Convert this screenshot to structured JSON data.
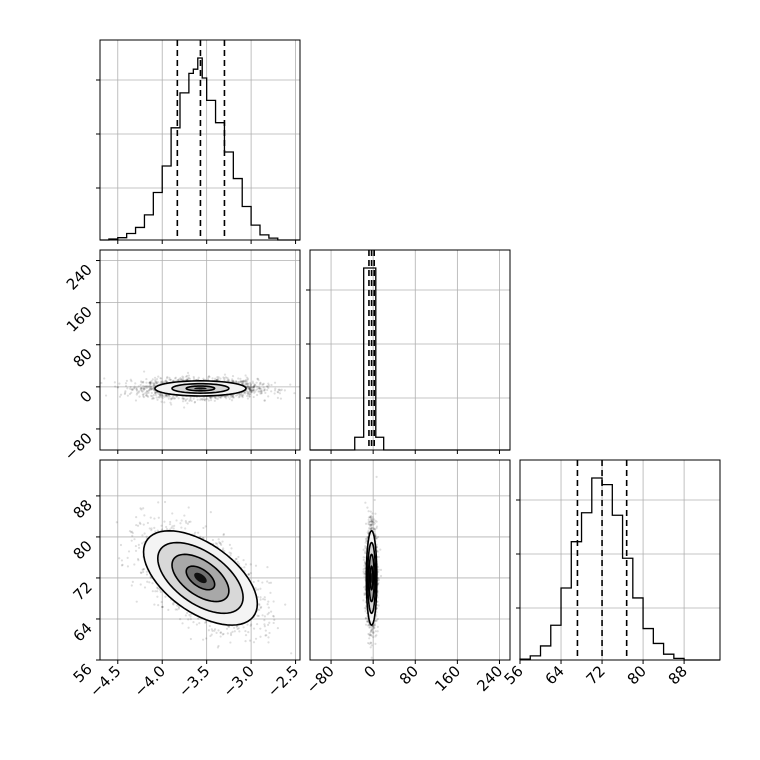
{
  "chart_data": {
    "type": "corner",
    "title": "",
    "grid": true,
    "n_params": 3,
    "params": [
      {
        "label": "",
        "range": [
          -4.7,
          -2.45
        ],
        "ticks": [
          -4.5,
          -4.0,
          -3.5,
          -3.0,
          -2.5
        ],
        "tick_labels": [
          "−4.5",
          "−4.0",
          "−3.5",
          "−3.0",
          "−2.5"
        ],
        "quantiles": [
          -3.83,
          -3.57,
          -3.3
        ],
        "hist_edges": [
          -4.7,
          -4.6,
          -4.5,
          -4.4,
          -4.3,
          -4.2,
          -4.1,
          -4.0,
          -3.9,
          -3.8,
          -3.7,
          -3.65,
          -3.6,
          -3.55,
          -3.5,
          -3.4,
          -3.3,
          -3.2,
          -3.1,
          -3.0,
          -2.9,
          -2.8,
          -2.7,
          -2.6,
          -2.45
        ],
        "hist_counts": [
          0,
          2,
          5,
          14,
          27,
          54,
          102,
          159,
          241,
          316,
          358,
          367,
          391,
          348,
          300,
          252,
          189,
          132,
          72,
          32,
          11,
          4,
          0,
          0
        ]
      },
      {
        "label": "",
        "range": [
          -120,
          260
        ],
        "ticks": [
          -80,
          0,
          80,
          160,
          240
        ],
        "tick_labels": [
          "−80",
          "0",
          "80",
          "160",
          "240"
        ],
        "quantiles": [
          -8,
          -3,
          2
        ],
        "hist_edges": [
          -120,
          -35,
          -18,
          -5,
          5,
          20,
          260
        ],
        "hist_counts": [
          0,
          7,
          100,
          100,
          7,
          0
        ]
      },
      {
        "label": "",
        "range": [
          56,
          95
        ],
        "ticks": [
          56,
          64,
          72,
          80,
          88
        ],
        "tick_labels": [
          "56",
          "64",
          "72",
          "80",
          "88"
        ],
        "quantiles": [
          67.2,
          72.0,
          76.8
        ],
        "hist_edges": [
          56,
          58,
          60,
          62,
          64,
          66,
          68,
          70,
          72,
          74,
          76,
          78,
          80,
          82,
          84,
          86,
          88,
          90,
          95
        ],
        "hist_counts": [
          1,
          5,
          17,
          42,
          87,
          143,
          178,
          220,
          212,
          175,
          123,
          75,
          38,
          20,
          7,
          2,
          0,
          0
        ]
      }
    ],
    "pairs": [
      {
        "x_param": 0,
        "y_param": 1,
        "center": [
          -3.57,
          -3
        ],
        "sigma": [
          0.32,
          9
        ],
        "rho": 0,
        "contour_levels": [
          0.5,
          1.0,
          1.6
        ]
      },
      {
        "x_param": 0,
        "y_param": 2,
        "center": [
          -3.57,
          72
        ],
        "sigma": [
          0.32,
          4.6
        ],
        "rho": -0.55,
        "contour_levels": [
          0.5,
          1.0,
          1.5,
          2.0
        ]
      },
      {
        "x_param": 1,
        "y_param": 2,
        "center": [
          -3,
          72
        ],
        "sigma": [
          5,
          4.6
        ],
        "rho": 0,
        "contour_levels": [
          0.5,
          1.0,
          1.5,
          2.0
        ]
      }
    ]
  }
}
